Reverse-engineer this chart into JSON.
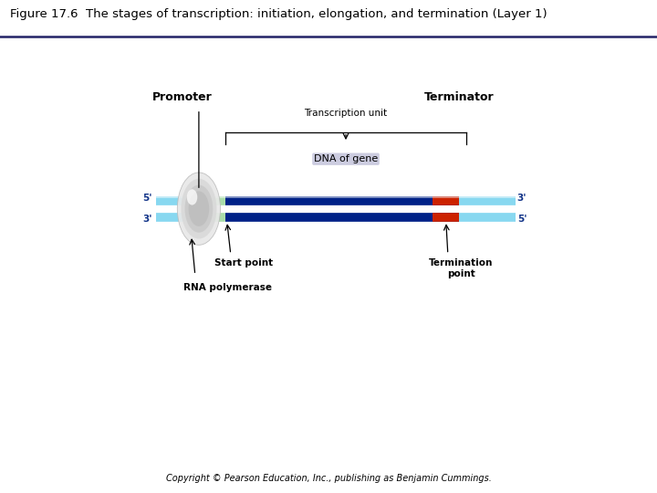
{
  "title": "Figure 17.6  The stages of transcription: initiation, elongation, and termination (Layer 1)",
  "panel_bg": "#cccce0",
  "fig_bg": "#ffffff",
  "copyright": "Copyright © Pearson Education, Inc., publishing as Benjamin Cummings.",
  "strand_light_color": "#88d8f0",
  "strand_dark_color": "#002288",
  "strand_green_color": "#aaddaa",
  "strand_red_color": "#cc2200",
  "promoter_label": "Promoter",
  "terminator_label": "Terminator",
  "transcription_unit_label": "Transcription unit",
  "dna_label": "DNA of gene",
  "start_label": "Start point",
  "termination_label": "Termination\npoint",
  "rna_pol_label": "RNA polymerase"
}
